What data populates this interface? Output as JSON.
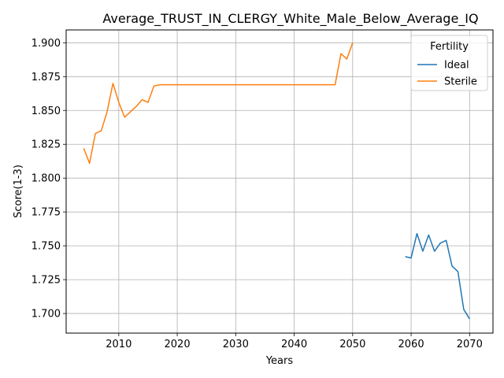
{
  "chart_data": {
    "type": "line",
    "title": "Average_TRUST_IN_CLERGY_White_Male_Below_Average_IQ",
    "xlabel": "Years",
    "ylabel": "Score(1-3)",
    "xlim": [
      2001,
      2074
    ],
    "ylim": [
      1.6855,
      1.9095
    ],
    "x_ticks": [
      2010,
      2020,
      2030,
      2040,
      2050,
      2060,
      2070
    ],
    "y_ticks": [
      1.7,
      1.725,
      1.75,
      1.775,
      1.8,
      1.825,
      1.85,
      1.875,
      1.9
    ],
    "y_tick_labels": [
      "1.700",
      "1.725",
      "1.750",
      "1.775",
      "1.800",
      "1.825",
      "1.850",
      "1.875",
      "1.900"
    ],
    "grid": true,
    "legend": {
      "title": "Fertility",
      "position": "top-right"
    },
    "series": [
      {
        "name": "Ideal",
        "color": "#1f77b4",
        "x": [
          2059,
          2060,
          2061,
          2062,
          2063,
          2064,
          2065,
          2066,
          2067,
          2068,
          2069,
          2070
        ],
        "y": [
          1.742,
          1.741,
          1.759,
          1.746,
          1.758,
          1.746,
          1.752,
          1.754,
          1.735,
          1.731,
          1.703,
          1.696
        ]
      },
      {
        "name": "Sterile",
        "color": "#ff7f0e",
        "x": [
          2004,
          2005,
          2006,
          2007,
          2008,
          2009,
          2010,
          2011,
          2012,
          2013,
          2014,
          2015,
          2016,
          2017,
          2018,
          2019,
          2020,
          2025,
          2030,
          2035,
          2040,
          2045,
          2046,
          2047,
          2048,
          2049,
          2050
        ],
        "y": [
          1.822,
          1.811,
          1.833,
          1.835,
          1.849,
          1.87,
          1.856,
          1.845,
          1.849,
          1.853,
          1.858,
          1.856,
          1.868,
          1.869,
          1.869,
          1.869,
          1.869,
          1.869,
          1.869,
          1.869,
          1.869,
          1.869,
          1.869,
          1.869,
          1.892,
          1.888,
          1.9
        ]
      }
    ]
  }
}
